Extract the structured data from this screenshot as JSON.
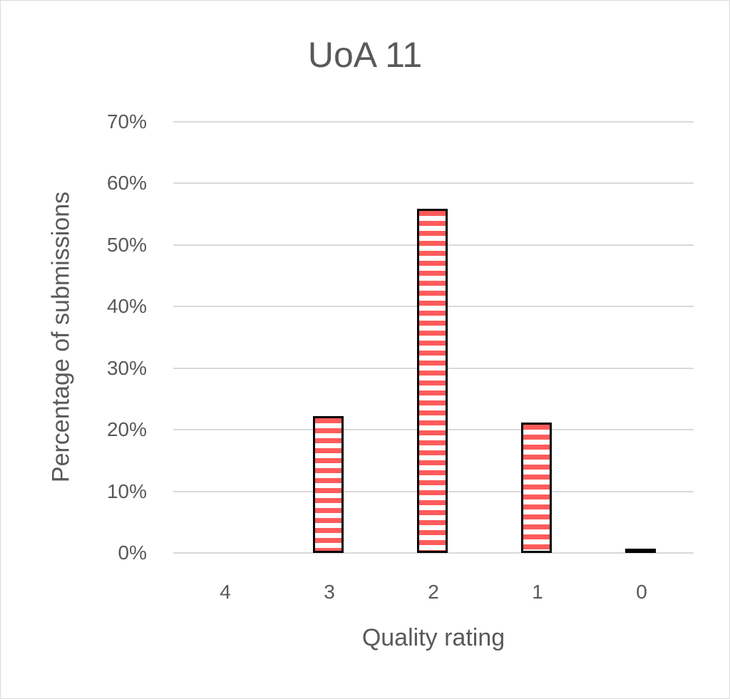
{
  "chart_data": {
    "type": "bar",
    "title": "UoA 11",
    "xlabel": "Quality rating",
    "ylabel": "Percentage of submissions",
    "categories": [
      "4",
      "3",
      "2",
      "1",
      "0"
    ],
    "values": [
      0.0,
      22.2,
      55.9,
      21.2,
      0.7
    ],
    "value_unit": "%",
    "ylim": [
      0,
      70
    ],
    "yticks": [
      "0%",
      "10%",
      "20%",
      "30%",
      "40%",
      "50%",
      "60%",
      "70%"
    ],
    "grid": true,
    "legend": null,
    "bar_fill": "red-white horizontal stripes",
    "colors": {
      "bar_stripe": "#ff5b5b",
      "bar_border": "#000000",
      "grid": "#d9d9d9",
      "text": "#595959"
    }
  }
}
